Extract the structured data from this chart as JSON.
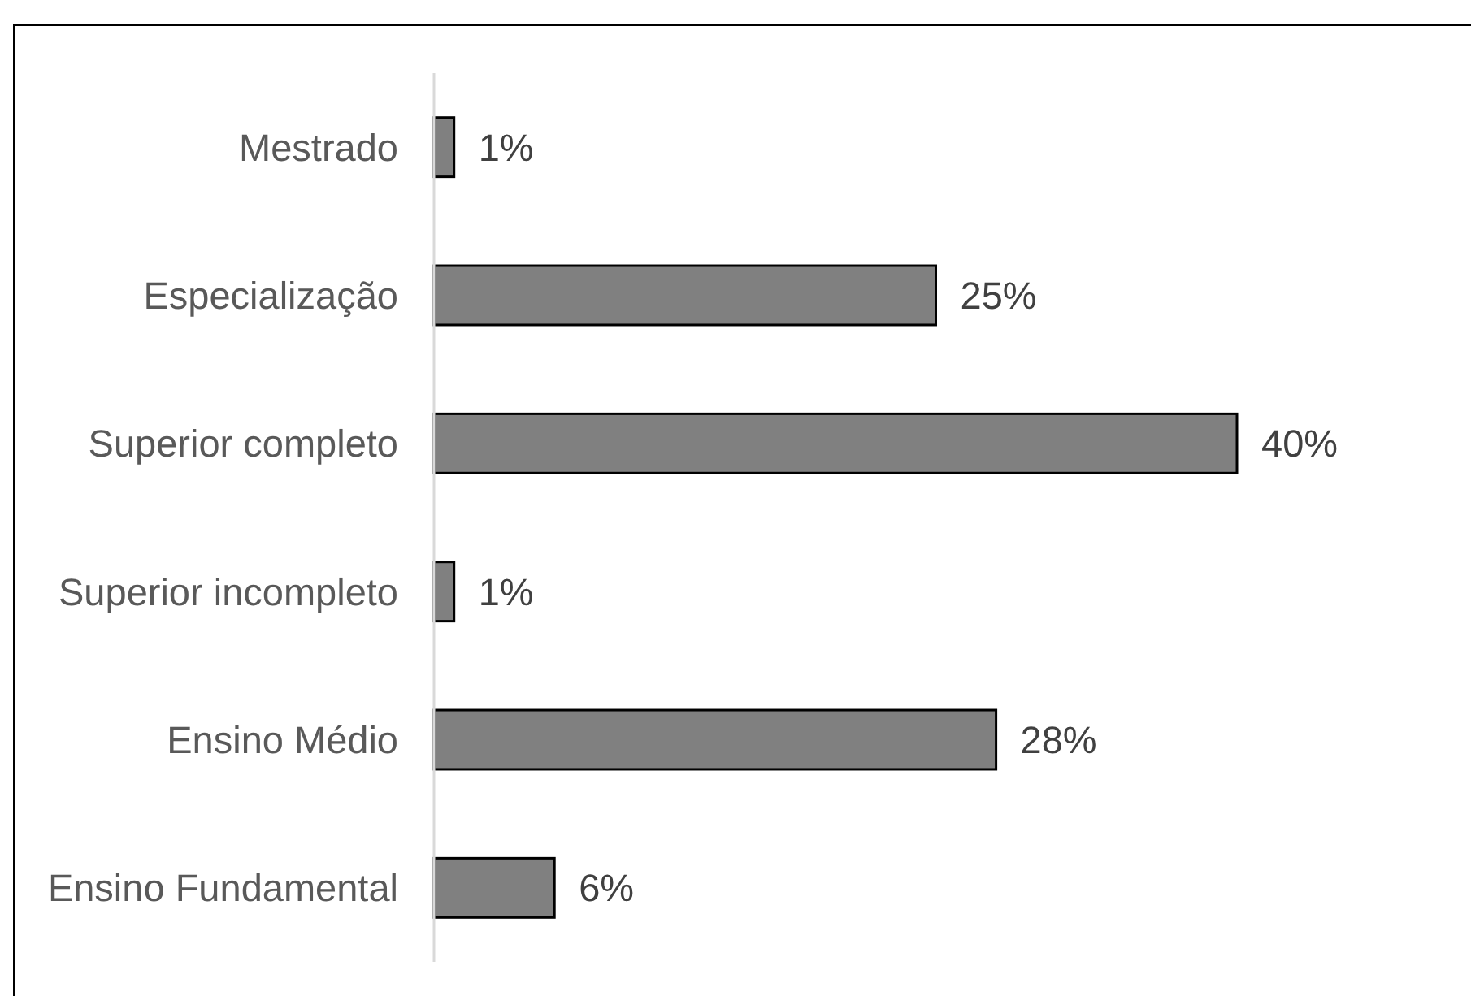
{
  "chart_data": {
    "type": "bar",
    "orientation": "horizontal",
    "categories": [
      "Mestrado",
      "Especialização",
      "Superior completo",
      "Superior incompleto",
      "Ensino Médio",
      "Ensino Fundamental"
    ],
    "values": [
      1,
      25,
      40,
      1,
      28,
      6
    ],
    "value_labels": [
      "1%",
      "25%",
      "40%",
      "1%",
      "28%",
      "6%"
    ],
    "color": "#808080"
  }
}
